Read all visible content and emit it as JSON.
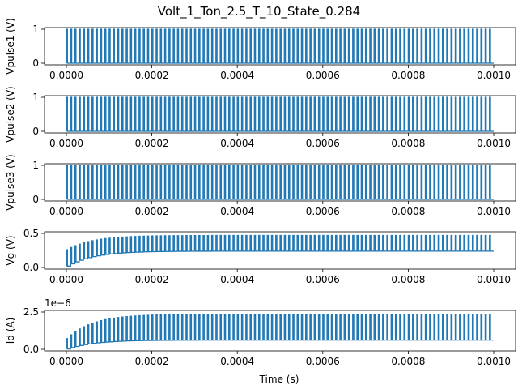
{
  "figure": {
    "title": "Volt_1_Ton_2.5_T_10_State_0.284",
    "xlabel": "Time (s)"
  },
  "chart_data": [
    {
      "type": "line",
      "ylabel": "Vpulse1 (V)",
      "xlim": [
        0,
        0.001
      ],
      "ylim": [
        0,
        1
      ],
      "x_ticks": [
        "0.0000",
        "0.0002",
        "0.0004",
        "0.0006",
        "0.0008",
        "0.0010"
      ],
      "y_ticks": [
        "0",
        "1"
      ],
      "y_tick_values": [
        0,
        1
      ],
      "series": [
        {
          "color": "#1f77b4",
          "pulses": 100,
          "period": 1e-05,
          "t_on": 2.5e-06,
          "low": 0,
          "high": 1
        }
      ]
    },
    {
      "type": "line",
      "ylabel": "Vpulse2 (V)",
      "xlim": [
        0,
        0.001
      ],
      "ylim": [
        0,
        1
      ],
      "x_ticks": [
        "0.0000",
        "0.0002",
        "0.0004",
        "0.0006",
        "0.0008",
        "0.0010"
      ],
      "y_ticks": [
        "0",
        "1"
      ],
      "y_tick_values": [
        0,
        1
      ],
      "series": [
        {
          "color": "#1f77b4",
          "pulses": 100,
          "period": 1e-05,
          "t_on": 2.5e-06,
          "low": 0,
          "high": 1
        }
      ]
    },
    {
      "type": "line",
      "ylabel": "Vpulse3 (V)",
      "xlim": [
        0,
        0.001
      ],
      "ylim": [
        0,
        1
      ],
      "x_ticks": [
        "0.0000",
        "0.0002",
        "0.0004",
        "0.0006",
        "0.0008",
        "0.0010"
      ],
      "y_ticks": [
        "0",
        "1"
      ],
      "y_tick_values": [
        0,
        1
      ],
      "series": [
        {
          "color": "#1f77b4",
          "pulses": 100,
          "period": 1e-05,
          "t_on": 2.5e-06,
          "low": 0,
          "high": 1
        }
      ]
    },
    {
      "type": "line",
      "ylabel": "Vg (V)",
      "xlim": [
        0,
        0.001
      ],
      "ylim": [
        0,
        0.5
      ],
      "x_ticks": [
        "0.0000",
        "0.0002",
        "0.0004",
        "0.0006",
        "0.0008",
        "0.0010"
      ],
      "y_ticks": [
        "0.0",
        "0.5"
      ],
      "y_tick_values": [
        0,
        0.5
      ],
      "series": [
        {
          "color": "#1f77b4",
          "pulses": 100,
          "period": 1e-05,
          "low_start": 0.02,
          "low_end": 0.24,
          "high_start": 0.26,
          "high_end": 0.47,
          "tau": 6e-05
        }
      ]
    },
    {
      "type": "line",
      "ylabel": "Id (A)",
      "scale_label": "1e−6",
      "xlim": [
        0,
        0.001
      ],
      "ylim": [
        0,
        2.5
      ],
      "x_ticks": [
        "0.0000",
        "0.0002",
        "0.0004",
        "0.0006",
        "0.0008",
        "0.0010"
      ],
      "y_ticks": [
        "0.0",
        "2.5"
      ],
      "y_tick_values": [
        0,
        2.5
      ],
      "series": [
        {
          "color": "#1f77b4",
          "pulses": 100,
          "period": 1e-05,
          "low_start": 0.02,
          "low_end": 0.62,
          "high_start": 0.72,
          "high_end": 2.35,
          "tau": 6e-05
        }
      ]
    }
  ]
}
